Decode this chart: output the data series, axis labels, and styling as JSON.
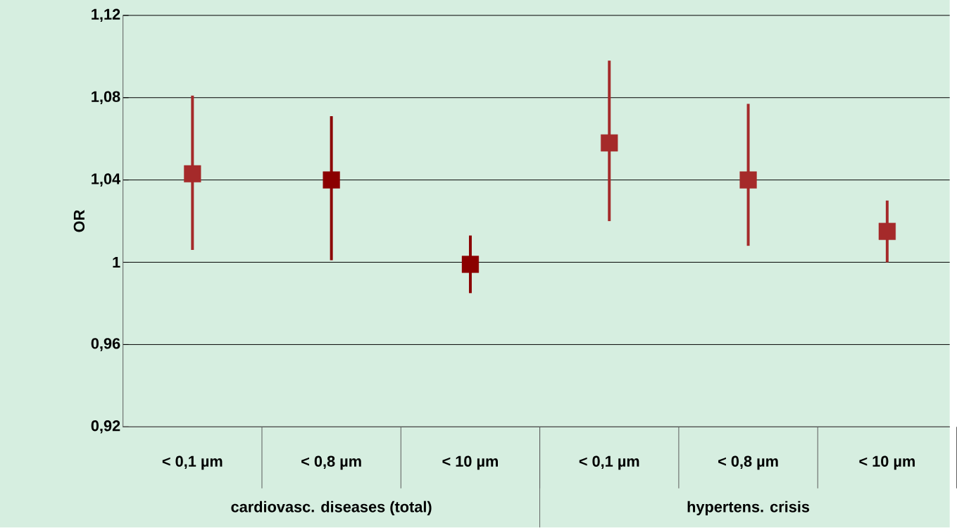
{
  "chart_data": {
    "type": "scatter",
    "ylabel": "OR",
    "categories": [
      "< 0,1 µm",
      "< 0,8 µm",
      "< 10 µm",
      "< 0,1 µm",
      "< 0,8 µm",
      "< 10 µm"
    ],
    "values": [
      1.043,
      1.04,
      0.999,
      1.058,
      1.04,
      1.015
    ],
    "errors": [
      [
        1.006,
        1.081
      ],
      [
        1.001,
        1.071
      ],
      [
        0.985,
        1.013
      ],
      [
        1.02,
        1.098
      ],
      [
        1.008,
        1.077
      ],
      [
        1.0,
        1.03
      ]
    ],
    "colors": [
      "#a52a2a",
      "#8b0000",
      "#8b0000",
      "#a52a2a",
      "#a52a2a",
      "#a52a2a"
    ],
    "ylim": [
      0.92,
      1.12
    ],
    "yticks": [
      {
        "value": 0.92,
        "label": "0,92"
      },
      {
        "value": 0.96,
        "label": "0,96"
      },
      1,
      {
        "value": 1.04,
        "label": "1,04"
      },
      {
        "value": 1.08,
        "label": "1,08"
      },
      {
        "value": 1.12,
        "label": "1,12"
      }
    ],
    "annotations": [
      "cardiovasc. diseases (total)",
      "hypertens. crisis"
    ],
    "grid": "y",
    "marker": "square"
  }
}
